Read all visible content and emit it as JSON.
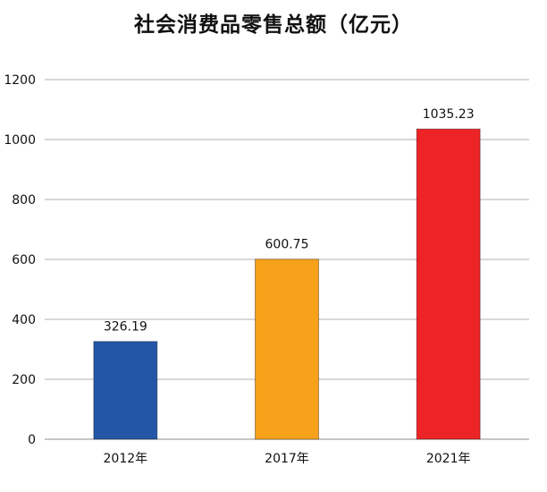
{
  "chart_data": {
    "type": "bar",
    "title": "社会消费品零售总额（亿元）",
    "categories": [
      "2012年",
      "2017年",
      "2021年"
    ],
    "values": [
      326.19,
      600.75,
      1035.23
    ],
    "value_labels": [
      "326.19",
      "600.75",
      "1035.23"
    ],
    "colors": [
      "#2456a6",
      "#f8a11a",
      "#ec2426"
    ],
    "ylim": [
      0,
      1200
    ],
    "yticks": [
      0,
      200,
      400,
      600,
      800,
      1000,
      1200
    ],
    "grid": true,
    "legend": "none"
  }
}
